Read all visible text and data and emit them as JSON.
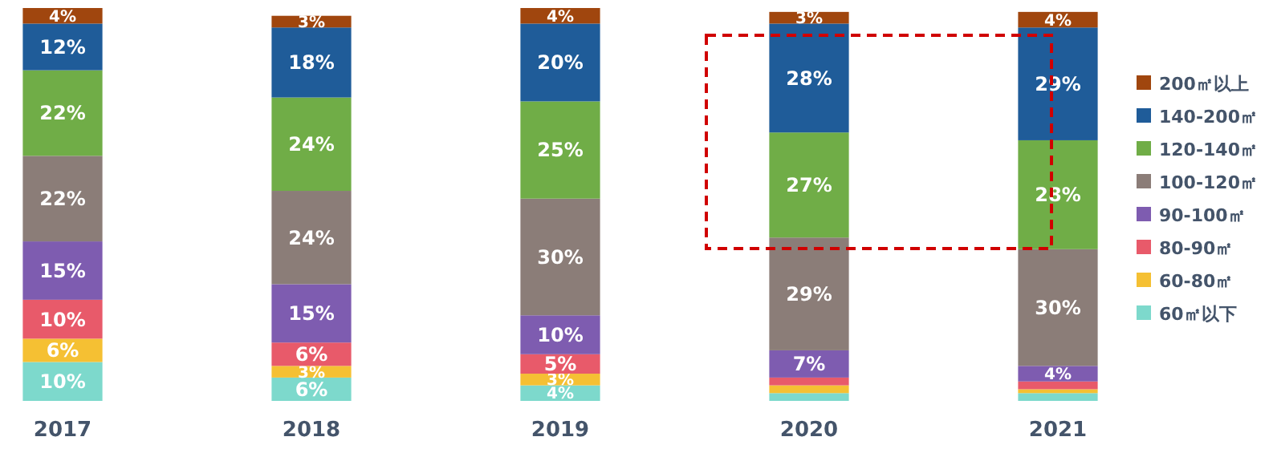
{
  "chart_data": {
    "type": "bar",
    "stacked": true,
    "legend": "right",
    "categories": [
      "2017",
      "2018",
      "2019",
      "2020",
      "2021"
    ],
    "series": [
      {
        "name": "60㎡以下",
        "color": "#7dd9cc",
        "values": [
          10,
          6,
          4,
          2,
          2
        ],
        "value_labels": [
          "10%",
          "6%",
          "4%",
          null,
          null
        ]
      },
      {
        "name": "60-80㎡",
        "color": "#f5c033",
        "values": [
          6,
          3,
          3,
          2,
          1
        ],
        "value_labels": [
          "6%",
          "3%",
          "3%",
          null,
          null
        ]
      },
      {
        "name": "80-90㎡",
        "color": "#e85a6a",
        "values": [
          10,
          6,
          5,
          2,
          2
        ],
        "value_labels": [
          "10%",
          "6%",
          "5%",
          null,
          null
        ]
      },
      {
        "name": "90-100㎡",
        "color": "#7e5cb0",
        "values": [
          15,
          15,
          10,
          7,
          4
        ],
        "value_labels": [
          "15%",
          "15%",
          "10%",
          "7%",
          "4%"
        ]
      },
      {
        "name": "100-120㎡",
        "color": "#8b7d78",
        "values": [
          22,
          24,
          30,
          29,
          30
        ],
        "value_labels": [
          "22%",
          "24%",
          "30%",
          "29%",
          "30%"
        ]
      },
      {
        "name": "120-140㎡",
        "color": "#70ad47",
        "values": [
          22,
          24,
          25,
          27,
          28
        ],
        "value_labels": [
          "22%",
          "24%",
          "25%",
          "27%",
          "28%"
        ]
      },
      {
        "name": "140-200㎡",
        "color": "#1f5c99",
        "values": [
          12,
          18,
          20,
          28,
          29
        ],
        "value_labels": [
          "12%",
          "18%",
          "20%",
          "28%",
          "29%"
        ]
      },
      {
        "name": "200㎡以上",
        "color": "#a0460e",
        "values": [
          4,
          3,
          4,
          3,
          4
        ],
        "value_labels": [
          "4%",
          "3%",
          "4%",
          "3%",
          "4%"
        ]
      }
    ]
  }
}
